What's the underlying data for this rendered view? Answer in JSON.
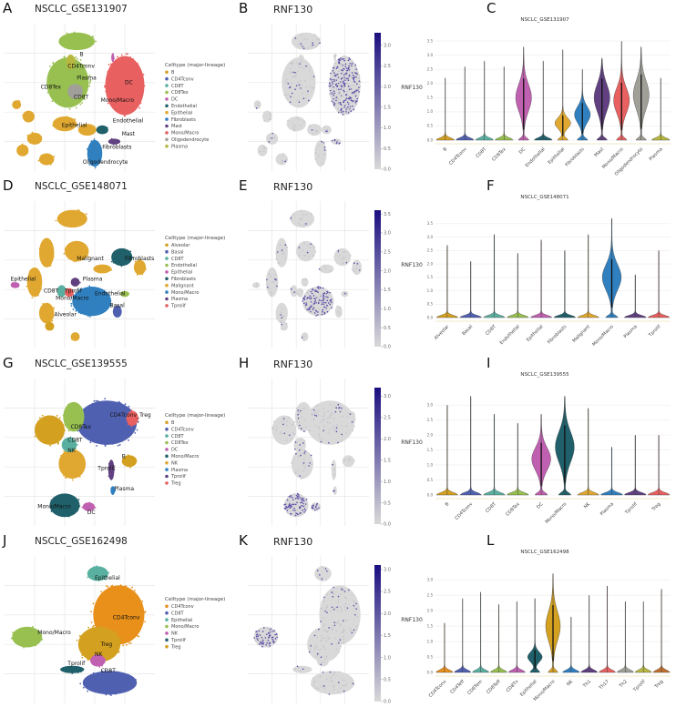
{
  "panels": [
    {
      "umap": {
        "letter": "A",
        "title": "NSCLC_GSE131907",
        "legend_title": "Celltype (major-lineage)",
        "legend": [
          {
            "label": "B",
            "color": "#d4a020"
          },
          {
            "label": "CD4Tconv",
            "color": "#5060b0"
          },
          {
            "label": "CD8T",
            "color": "#5ab0a0"
          },
          {
            "label": "CD8Tex",
            "color": "#98c050"
          },
          {
            "label": "DC",
            "color": "#c060b0"
          },
          {
            "label": "Endothelial",
            "color": "#20606a"
          },
          {
            "label": "Epithelial",
            "color": "#e0a830"
          },
          {
            "label": "Fibroblasts",
            "color": "#3080c0"
          },
          {
            "label": "Mast",
            "color": "#604080"
          },
          {
            "label": "Mono/Macro",
            "color": "#e86060"
          },
          {
            "label": "Oligodendrocyte",
            "color": "#a0a098"
          },
          {
            "label": "Plasma",
            "color": "#b8b840"
          }
        ],
        "cluster_labels": [
          "B",
          "CD4Tconv",
          "Plasma",
          "CD8Tex",
          "CD8T",
          "DC",
          "Mono/Macro",
          "Epithelial",
          "Endothelial",
          "Mast",
          "Fibroblasts",
          "Oligodendrocyte"
        ]
      },
      "feature": {
        "letter": "B",
        "title": "RNF130",
        "colorbar_max": 3.3,
        "colorbar_ticks": [
          "0.0",
          "0.5",
          "1.0",
          "1.5",
          "2.0",
          "2.5",
          "3.0"
        ]
      }
    },
    {
      "umap": {
        "letter": "D",
        "title": "NSCLC_GSE148071",
        "legend_title": "Celltype (major-lineage)",
        "legend": [
          {
            "label": "Alveolar",
            "color": "#d4a020"
          },
          {
            "label": "Basal",
            "color": "#5060b0"
          },
          {
            "label": "CD8T",
            "color": "#5ab0a0"
          },
          {
            "label": "Endothelial",
            "color": "#98c050"
          },
          {
            "label": "Epithelial",
            "color": "#c060b0"
          },
          {
            "label": "Fibroblasts",
            "color": "#20606a"
          },
          {
            "label": "Malignant",
            "color": "#e0a830"
          },
          {
            "label": "Mono/Macro",
            "color": "#3080c0"
          },
          {
            "label": "Plasma",
            "color": "#604080"
          },
          {
            "label": "Tprolif",
            "color": "#e86060"
          }
        ],
        "cluster_labels": [
          "Malignant",
          "Fibroblasts",
          "Epithelial",
          "Plasma",
          "CD8T",
          "Tprolif",
          "Mono/Macro",
          "Endothelial",
          "Basal",
          "Alveolar"
        ]
      },
      "feature": {
        "letter": "E",
        "title": "RNF130",
        "colorbar_max": 3.6,
        "colorbar_ticks": [
          "0.0",
          "0.5",
          "1.0",
          "1.5",
          "2.0",
          "2.5",
          "3.0",
          "3.5"
        ]
      }
    },
    {
      "umap": {
        "letter": "G",
        "title": "NSCLC_GSE139555",
        "legend_title": "Celltype (major-lineage)",
        "legend": [
          {
            "label": "B",
            "color": "#d4a020"
          },
          {
            "label": "CD4Tconv",
            "color": "#5060b0"
          },
          {
            "label": "CD8T",
            "color": "#5ab0a0"
          },
          {
            "label": "CD8Tex",
            "color": "#98c050"
          },
          {
            "label": "DC",
            "color": "#c060b0"
          },
          {
            "label": "Mono/Macro",
            "color": "#20606a"
          },
          {
            "label": "NK",
            "color": "#e0a830"
          },
          {
            "label": "Plasma",
            "color": "#3080c0"
          },
          {
            "label": "Tprolif",
            "color": "#604080"
          },
          {
            "label": "Treg",
            "color": "#e86060"
          }
        ],
        "cluster_labels": [
          "CD4Tconv_Treg",
          "CD8Tex",
          "CD8T",
          "NK",
          "B",
          "Tprolif",
          "Plasma",
          "Mono/Macro",
          "DC"
        ]
      },
      "feature": {
        "letter": "H",
        "title": "RNF130",
        "colorbar_max": 3.2,
        "colorbar_ticks": [
          "0.0",
          "0.5",
          "1.0",
          "1.5",
          "2.0",
          "2.5",
          "3.0"
        ]
      }
    },
    {
      "umap": {
        "letter": "J",
        "title": "NSCLC_GSE162498",
        "legend_title": "Celltype (major-lineage)",
        "legend": [
          {
            "label": "CD4Tconv",
            "color": "#e8901a"
          },
          {
            "label": "CD8T",
            "color": "#5060b0"
          },
          {
            "label": "Epithelial",
            "color": "#5ab0a0"
          },
          {
            "label": "Mono/Macro",
            "color": "#98c050"
          },
          {
            "label": "NK",
            "color": "#c060b0"
          },
          {
            "label": "Tprolif",
            "color": "#20606a"
          },
          {
            "label": "Treg",
            "color": "#d4a020"
          }
        ],
        "cluster_labels": [
          "Epithelial",
          "CD4Tconv",
          "Mono/Macro",
          "Treg",
          "NK",
          "Tprolif",
          "CD8T"
        ]
      },
      "feature": {
        "letter": "K",
        "title": "RNF130",
        "colorbar_max": 3.1,
        "colorbar_ticks": [
          "0.0",
          "0.5",
          "1.0",
          "1.5",
          "2.0",
          "2.5",
          "3.0"
        ]
      }
    }
  ],
  "feature_colors": {
    "low": "#d9d9d9",
    "high": "#1a0f80"
  },
  "chart_data": [
    {
      "type": "violin",
      "letter": "C",
      "title": "NSCLC_GSE131907",
      "ylabel": "RNF130",
      "ylim": [
        0,
        3.6
      ],
      "yticks": [
        "0.0",
        "0.5",
        "1.0",
        "1.5",
        "2.0",
        "2.5",
        "3.0",
        "3.5"
      ],
      "grid": true,
      "categories": [
        "B",
        "CD4Tconv",
        "CD8T",
        "CD8Tex",
        "DC",
        "Endothelial",
        "Epithelial",
        "Fibroblasts",
        "Mast",
        "Mono/Macro",
        "Oligodendrocyte",
        "Plasma"
      ],
      "max": [
        2.2,
        2.6,
        2.8,
        2.6,
        3.3,
        2.8,
        3.2,
        2.5,
        2.9,
        3.5,
        3.3,
        2.2
      ],
      "mode": [
        null,
        null,
        null,
        null,
        1.5,
        null,
        0.6,
        0.9,
        1.5,
        1.4,
        1.6,
        null
      ],
      "colors": [
        "#d4a020",
        "#5060b0",
        "#5ab0a0",
        "#98c050",
        "#c060b0",
        "#20606a",
        "#e0a830",
        "#3080c0",
        "#604080",
        "#e86060",
        "#a0a098",
        "#b8b840"
      ]
    },
    {
      "type": "violin",
      "letter": "F",
      "title": "NSCLC_GSE148071",
      "ylabel": "RNF130",
      "ylim": [
        0,
        3.8
      ],
      "yticks": [
        "0.0",
        "0.5",
        "1.0",
        "1.5",
        "2.0",
        "2.5",
        "3.0",
        "3.5"
      ],
      "grid": true,
      "categories": [
        "Alveolar",
        "Basal",
        "CD8T",
        "Endothelial",
        "Epithelial",
        "Fibroblasts",
        "Malignant",
        "Mono/Macro",
        "Plasma",
        "Tprolif"
      ],
      "max": [
        2.7,
        2.1,
        3.1,
        2.4,
        2.9,
        2.5,
        3.1,
        3.7,
        1.6,
        2.5
      ],
      "mode": [
        null,
        null,
        null,
        null,
        null,
        null,
        null,
        1.5,
        null,
        null
      ],
      "colors": [
        "#d4a020",
        "#5060b0",
        "#5ab0a0",
        "#98c050",
        "#c060b0",
        "#20606a",
        "#e0a830",
        "#3080c0",
        "#604080",
        "#e86060"
      ]
    },
    {
      "type": "violin",
      "letter": "I",
      "title": "NSCLC_GSE139555",
      "ylabel": "RNF130",
      "ylim": [
        0,
        3.4
      ],
      "yticks": [
        "0.0",
        "0.5",
        "1.0",
        "1.5",
        "2.0",
        "2.5",
        "3.0"
      ],
      "grid": true,
      "categories": [
        "B",
        "CD4Tconv",
        "CD8T",
        "CD8Tex",
        "DC",
        "Mono/Macro",
        "NK",
        "Plasma",
        "Tprolif",
        "Treg"
      ],
      "max": [
        3.0,
        3.3,
        2.7,
        2.4,
        2.7,
        3.3,
        2.9,
        1.6,
        2.0,
        2.0
      ],
      "mode": [
        null,
        null,
        null,
        null,
        1.2,
        1.6,
        null,
        null,
        null,
        null
      ],
      "colors": [
        "#d4a020",
        "#5060b0",
        "#5ab0a0",
        "#98c050",
        "#c060b0",
        "#20606a",
        "#e0a830",
        "#3080c0",
        "#604080",
        "#e86060"
      ]
    },
    {
      "type": "violin",
      "letter": "L",
      "title": "NSCLC_GSE162498",
      "ylabel": "RNF130",
      "ylim": [
        0,
        3.3
      ],
      "yticks": [
        "0.0",
        "0.5",
        "1.0",
        "1.5",
        "2.0",
        "2.5",
        "3.0"
      ],
      "grid": true,
      "categories": [
        "CD4Tconv",
        "CD4Teff",
        "CD8Tem",
        "CD8Teff",
        "CD8Tn",
        "Epithelial",
        "Mono/Macro",
        "NK",
        "Th1",
        "Th17",
        "Th2",
        "Tprolif",
        "Treg"
      ],
      "max": [
        1.6,
        2.4,
        2.6,
        2.2,
        2.3,
        2.4,
        3.2,
        1.8,
        2.5,
        2.8,
        2.3,
        2.3,
        2.7
      ],
      "mode": [
        null,
        null,
        null,
        null,
        null,
        0.5,
        1.5,
        null,
        null,
        null,
        null,
        null,
        null
      ],
      "colors": [
        "#e8901a",
        "#5060b0",
        "#5ab0a0",
        "#98c050",
        "#c060b0",
        "#20606a",
        "#d4a020",
        "#3080c0",
        "#604080",
        "#e86060",
        "#a0a098",
        "#b8b840",
        "#c07030"
      ]
    }
  ]
}
